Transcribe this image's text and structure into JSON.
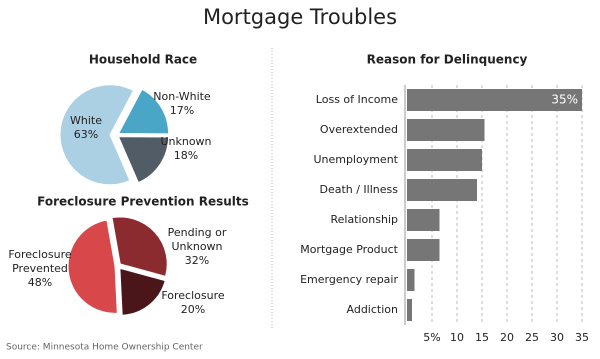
{
  "title": "Mortgage Troubles",
  "source": "Source: Minnesota Home Ownership Center",
  "chart_data": [
    {
      "type": "pie",
      "title": "Household Race",
      "categories": [
        "White",
        "Non-White",
        "Unknown"
      ],
      "values": [
        63,
        17,
        18
      ],
      "value_labels": [
        "63%",
        "17%",
        "18%"
      ],
      "colors": [
        "#abd0e4",
        "#4aa6c6",
        "#515c66"
      ]
    },
    {
      "type": "pie",
      "title": "Foreclosure Prevention Results",
      "categories": [
        "Foreclosure Prevented",
        "Pending or Unknown",
        "Foreclosure"
      ],
      "values": [
        48,
        32,
        20
      ],
      "value_labels": [
        "48%",
        "32%",
        "20%"
      ],
      "colors": [
        "#d8474a",
        "#8c2b2f",
        "#4a1619"
      ]
    },
    {
      "type": "bar",
      "orientation": "horizontal",
      "title": "Reason for Delinquency",
      "categories": [
        "Loss of Income",
        "Overextended",
        "Unemployment",
        "Death / Illness",
        "Relationship",
        "Mortgage Product",
        "Emergency repair",
        "Addiction"
      ],
      "values": [
        35,
        15.5,
        15,
        14,
        6.5,
        6.5,
        1.5,
        1
      ],
      "value_labels": [
        "35%",
        null,
        null,
        null,
        null,
        null,
        null,
        null
      ],
      "color": "#767676",
      "xlim": [
        0,
        35
      ],
      "xticks": [
        {
          "value": 5,
          "label": "5%"
        },
        10,
        15,
        20,
        25,
        30,
        35
      ],
      "grid": true
    }
  ]
}
